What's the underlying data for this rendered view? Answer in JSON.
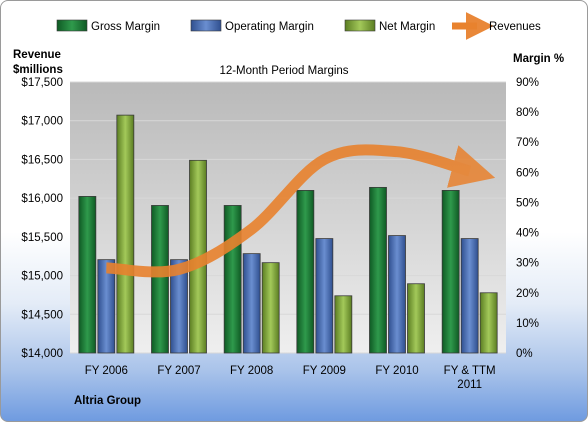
{
  "chart_data": {
    "type": "bar",
    "title": "12-Month Period Margins",
    "company": "Altria Group",
    "left_axis_title": [
      "Revenue",
      "$millions"
    ],
    "right_axis_title": "Margin %",
    "categories": [
      "FY 2006",
      "FY 2007",
      "FY 2008",
      "FY 2009",
      "FY 2010",
      "FY & TTM 2011"
    ],
    "left_ticks": [
      "$14,000",
      "$14,500",
      "$15,000",
      "$15,500",
      "$16,000",
      "$16,500",
      "$17,000",
      "$17,500"
    ],
    "right_ticks": [
      "0%",
      "10%",
      "20%",
      "30%",
      "40%",
      "50%",
      "60%",
      "70%",
      "80%",
      "90%"
    ],
    "left_range": [
      14000,
      17500
    ],
    "right_range": [
      0,
      90
    ],
    "series": [
      {
        "name": "Gross Margin",
        "color": "#1f7a3a",
        "values": [
          52,
          49,
          49,
          54,
          55,
          54
        ]
      },
      {
        "name": "Operating Margin",
        "color": "#4a6fb5",
        "values": [
          31,
          31,
          33,
          38,
          39,
          38
        ]
      },
      {
        "name": "Net Margin",
        "color": "#7ea63a",
        "values": [
          79,
          64,
          30,
          19,
          23,
          20
        ]
      }
    ],
    "revenues": {
      "name": "Revenues",
      "color": "#e8822e",
      "values": [
        15100,
        15080,
        15600,
        16500,
        16600,
        16350
      ]
    },
    "grid": true,
    "legend_position": "top"
  }
}
